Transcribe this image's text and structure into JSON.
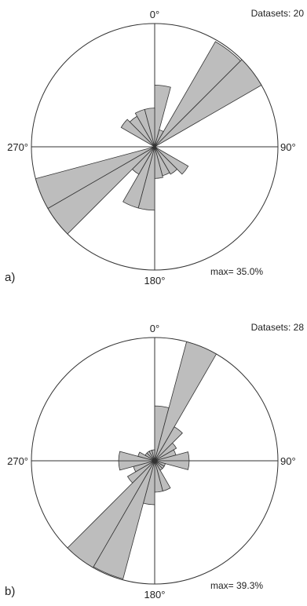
{
  "chart_data": [
    {
      "type": "rose",
      "panel_label": "a)",
      "angle_labels": {
        "north": "0°",
        "east": "90°",
        "south": "180°",
        "west": "270°"
      },
      "datasets_label": "Datasets: 20",
      "max_label": "max= 35.0%",
      "max_percent": 35.0,
      "bin_width_deg": 15,
      "bins": [
        {
          "start_deg": 0,
          "percent": 17.5
        },
        {
          "start_deg": 15,
          "percent": 5.0
        },
        {
          "start_deg": 30,
          "percent": 34.5
        },
        {
          "start_deg": 45,
          "percent": 35.0
        },
        {
          "start_deg": 120,
          "percent": 11.0
        },
        {
          "start_deg": 135,
          "percent": 9.0
        },
        {
          "start_deg": 150,
          "percent": 8.5
        },
        {
          "start_deg": 165,
          "percent": 9.0
        },
        {
          "start_deg": 180,
          "percent": 18.0
        },
        {
          "start_deg": 195,
          "percent": 18.0
        },
        {
          "start_deg": 210,
          "percent": 9.0
        },
        {
          "start_deg": 225,
          "percent": 35.0
        },
        {
          "start_deg": 240,
          "percent": 35.0
        },
        {
          "start_deg": 300,
          "percent": 11.0
        },
        {
          "start_deg": 315,
          "percent": 10.0
        },
        {
          "start_deg": 330,
          "percent": 11.0
        },
        {
          "start_deg": 345,
          "percent": 11.0
        }
      ]
    },
    {
      "type": "rose",
      "panel_label": "b)",
      "angle_labels": {
        "north": "0°",
        "east": "90°",
        "south": "180°",
        "west": "270°"
      },
      "datasets_label": "Datasets: 28",
      "max_label": "max= 39.3%",
      "max_percent": 39.3,
      "bin_width_deg": 15,
      "bins": [
        {
          "start_deg": 0,
          "percent": 17.5
        },
        {
          "start_deg": 15,
          "percent": 39.3
        },
        {
          "start_deg": 30,
          "percent": 12.5
        },
        {
          "start_deg": 45,
          "percent": 8.0
        },
        {
          "start_deg": 60,
          "percent": 7.0
        },
        {
          "start_deg": 75,
          "percent": 11.0
        },
        {
          "start_deg": 90,
          "percent": 11.0
        },
        {
          "start_deg": 105,
          "percent": 3.5
        },
        {
          "start_deg": 120,
          "percent": 3.5
        },
        {
          "start_deg": 135,
          "percent": 3.5
        },
        {
          "start_deg": 150,
          "percent": 10.0
        },
        {
          "start_deg": 165,
          "percent": 10.0
        },
        {
          "start_deg": 180,
          "percent": 14.0
        },
        {
          "start_deg": 195,
          "percent": 39.0
        },
        {
          "start_deg": 210,
          "percent": 39.3
        },
        {
          "start_deg": 225,
          "percent": 10.0
        },
        {
          "start_deg": 240,
          "percent": 7.0
        },
        {
          "start_deg": 255,
          "percent": 11.5
        },
        {
          "start_deg": 270,
          "percent": 11.5
        },
        {
          "start_deg": 285,
          "percent": 5.5
        },
        {
          "start_deg": 300,
          "percent": 3.5
        },
        {
          "start_deg": 315,
          "percent": 3.5
        },
        {
          "start_deg": 330,
          "percent": 3.5
        },
        {
          "start_deg": 345,
          "percent": 3.5
        }
      ]
    }
  ]
}
